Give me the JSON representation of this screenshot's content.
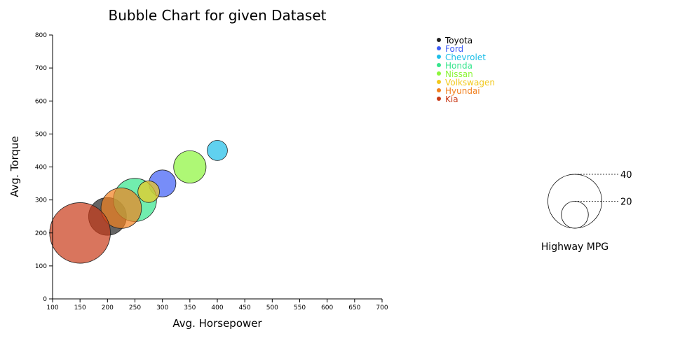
{
  "chart_data": {
    "type": "scatter",
    "title": "Bubble Chart for given Dataset",
    "xlabel": "Avg. Horsepower",
    "ylabel": "Avg. Torque",
    "xlim": [
      100,
      700
    ],
    "ylim": [
      0,
      800
    ],
    "x_ticks": [
      100,
      150,
      200,
      250,
      300,
      350,
      400,
      450,
      500,
      550,
      600,
      650,
      700
    ],
    "y_ticks": [
      0,
      100,
      200,
      300,
      400,
      500,
      600,
      700,
      800
    ],
    "size_field": "Highway MPG",
    "series": [
      {
        "name": "Toyota",
        "color": "#222222",
        "x": 200,
        "y": 250,
        "size": 28
      },
      {
        "name": "Ford",
        "color": "#3d5cf5",
        "x": 300,
        "y": 350,
        "size": 20
      },
      {
        "name": "Chevrolet",
        "color": "#1dbee8",
        "x": 400,
        "y": 450,
        "size": 15
      },
      {
        "name": "Honda",
        "color": "#35e58c",
        "x": 250,
        "y": 300,
        "size": 32
      },
      {
        "name": "Nissan",
        "color": "#8cf53a",
        "x": 350,
        "y": 400,
        "size": 24
      },
      {
        "name": "Volkswagen",
        "color": "#f2c91d",
        "x": 275,
        "y": 325,
        "size": 16
      },
      {
        "name": "Hyundai",
        "color": "#f2801e",
        "x": 225,
        "y": 275,
        "size": 30
      },
      {
        "name": "Kia",
        "color": "#c93a18",
        "x": 150,
        "y": 200,
        "size": 45
      }
    ],
    "size_legend": {
      "title": "Highway MPG",
      "values": [
        40,
        20
      ]
    },
    "legend_position": "top-right",
    "grid": false
  }
}
